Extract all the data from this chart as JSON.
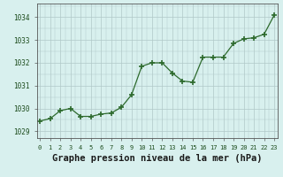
{
  "x": [
    0,
    1,
    2,
    3,
    4,
    5,
    6,
    7,
    8,
    9,
    10,
    11,
    12,
    13,
    14,
    15,
    16,
    17,
    18,
    19,
    20,
    21,
    22,
    23
  ],
  "y": [
    1029.45,
    1029.55,
    1029.9,
    1030.0,
    1029.65,
    1029.65,
    1029.75,
    1029.8,
    1030.05,
    1030.6,
    1031.85,
    1032.0,
    1032.0,
    1031.55,
    1031.2,
    1031.15,
    1032.25,
    1032.25,
    1032.25,
    1032.85,
    1033.05,
    1033.1,
    1033.25,
    1034.1
  ],
  "line_color": "#2d6a2d",
  "marker": "+",
  "marker_size": 4,
  "marker_lw": 1.2,
  "bg_color": "#d8f0ee",
  "grid_color": "#b0c8c8",
  "xlabel": "Graphe pression niveau de la mer (hPa)",
  "xlabel_fontsize": 7.5,
  "ytick_labels": [
    "1029",
    "1030",
    "1031",
    "1032",
    "1033",
    "1034"
  ],
  "ytick_vals": [
    1029,
    1030,
    1031,
    1032,
    1033,
    1034
  ],
  "xtick_vals": [
    0,
    1,
    2,
    3,
    4,
    5,
    6,
    7,
    8,
    9,
    10,
    11,
    12,
    13,
    14,
    15,
    16,
    17,
    18,
    19,
    20,
    21,
    22,
    23
  ],
  "ylim": [
    1028.7,
    1034.6
  ],
  "xlim": [
    -0.3,
    23.3
  ]
}
